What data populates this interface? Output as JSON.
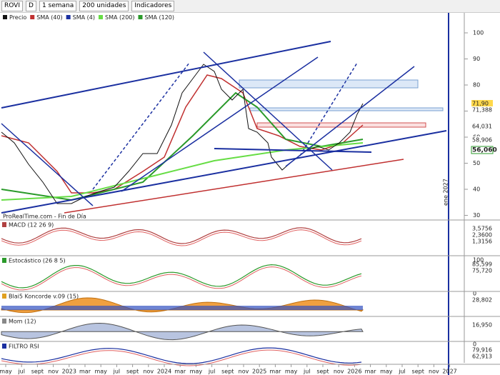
{
  "toolbar": {
    "symbol": "ROVI",
    "period_key": "D",
    "period": "1 semana",
    "units": "200 unidades",
    "indicators": "Indicadores"
  },
  "legend": [
    "Precio",
    "SMA (40)",
    "SMA (4)",
    "SMA (200)",
    "SMA (120)"
  ],
  "price_axis": [
    "100",
    "90",
    "80",
    "70",
    "60",
    "50",
    "40",
    "30"
  ],
  "price_labels": [
    "71,90",
    "71,388",
    "64,031",
    "58,906",
    "56,060"
  ],
  "source": "ProRealTime.com - Fin de Día",
  "vertical_label": "ene 2027",
  "panels": [
    {
      "title": "MACD (12 26 9)",
      "labels": [
        "3,5756",
        "2,3600",
        "1,3156"
      ]
    },
    {
      "title": "Estocástico (26 8 5)",
      "labels": [
        "85,599",
        "75,720"
      ],
      "axis": [
        "100",
        "0"
      ]
    },
    {
      "title": "Blai5 Koncorde v.09 (15)",
      "labels": [
        "28,802"
      ]
    },
    {
      "title": "Mom (12)",
      "labels": [
        "16,950"
      ],
      "axis": [
        "0"
      ]
    },
    {
      "title": "FILTRO RSI",
      "labels": [
        "79,916",
        "62,913"
      ]
    }
  ],
  "x_axis": [
    "may",
    "jul",
    "sept",
    "nov",
    "2023",
    "mar",
    "may",
    "jul",
    "sept",
    "nov",
    "2024",
    "mar",
    "may",
    "jul",
    "sept",
    "nov",
    "2025",
    "mar",
    "may",
    "jul",
    "sept",
    "nov",
    "2026",
    "mar",
    "may",
    "jul",
    "sept",
    "nov",
    "2027"
  ]
}
